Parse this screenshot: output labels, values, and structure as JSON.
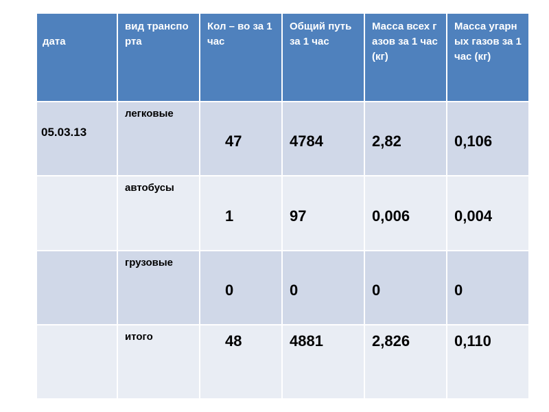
{
  "table": {
    "header": [
      "дата",
      "вид транспорта",
      "Кол – во за 1 час",
      "Общий путь за 1 час",
      "Масса всех газов за 1 час (кг)",
      "Масса угарных газов за 1 час (кг)"
    ],
    "rows": [
      [
        "05.03.13",
        "легковые",
        "47",
        "4784",
        "2,82",
        "0,106"
      ],
      [
        null,
        "автобусы",
        "1",
        "97",
        "0,006",
        "0,004"
      ],
      [
        null,
        "грузовые",
        "0",
        "0",
        "0",
        "0"
      ],
      [
        null,
        "итого",
        "48",
        "4881",
        "2,826",
        "0,110"
      ]
    ]
  }
}
